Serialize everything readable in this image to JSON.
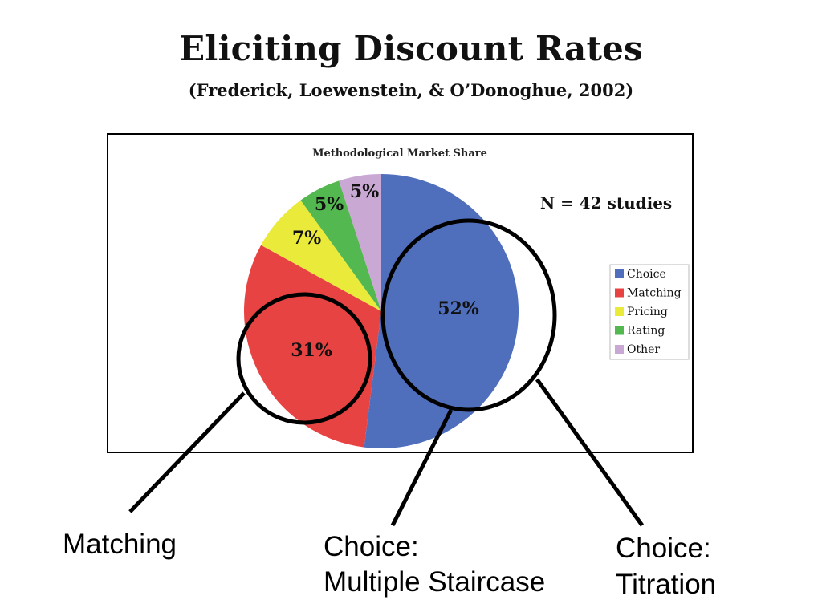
{
  "slide": {
    "title": "Eliciting Discount Rates",
    "subtitle": "(Frederick, Loewenstein, & O’Donoghue, 2002)"
  },
  "chart_data": {
    "type": "pie",
    "title": "Methodological Market Share",
    "annotation": "N = 42 studies",
    "categories": [
      "Choice",
      "Matching",
      "Pricing",
      "Rating",
      "Other"
    ],
    "values": [
      52,
      31,
      7,
      5,
      5
    ],
    "labels": [
      "52%",
      "31%",
      "7%",
      "5%",
      "5%"
    ],
    "colors": [
      "#4f6fbd",
      "#e84343",
      "#eaea3a",
      "#52b84f",
      "#c9a8d4"
    ],
    "legend_position": "right"
  },
  "callouts": {
    "matching": "Matching",
    "staircase_line1": "Choice:",
    "staircase_line2": "Multiple Staircase",
    "titration_line1": "Choice:",
    "titration_line2": "Titration"
  }
}
